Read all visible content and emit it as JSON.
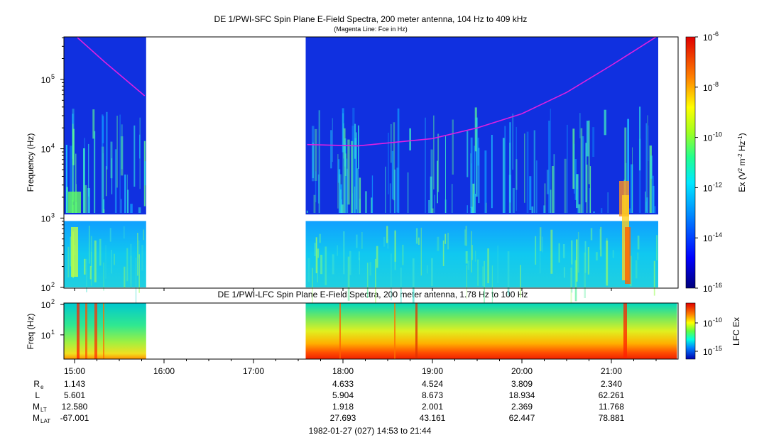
{
  "colors": {
    "panel_base": "#1030e0",
    "band_blue": "#1840ff",
    "trace": "#e020e0",
    "gap_fill": "#ffffff"
  },
  "chart_data": [
    {
      "type": "heatmap",
      "title": "DE 1/PWI-SFC  Spin Plane E-Field Spectra, 200 meter antenna, 104 Hz to 409 kHz",
      "subtitle": "(Magenta Line: Fce in Hz)",
      "xlabel": "",
      "ylabel": "Frequency (Hz)",
      "yscale": "log",
      "ylim": [
        100,
        409000
      ],
      "yticks": [
        {
          "value": 100,
          "label": "10",
          "sup": "2"
        },
        {
          "value": 1000,
          "label": "10",
          "sup": "3"
        },
        {
          "value": 10000,
          "label": "10",
          "sup": "4"
        },
        {
          "value": 100000,
          "label": "10",
          "sup": "5"
        }
      ],
      "xlim": [
        "14:53",
        "21:44"
      ],
      "data_gaps": [
        [
          "15:48",
          "17:35"
        ]
      ],
      "magenta_trace_fce_hz": [
        {
          "t": "15:02",
          "f": 400000
        },
        {
          "t": "15:20",
          "f": 180000
        },
        {
          "t": "15:47",
          "f": 58000
        },
        {
          "t": "17:36",
          "f": 11500
        },
        {
          "t": "18:10",
          "f": 11000
        },
        {
          "t": "19:00",
          "f": 14000
        },
        {
          "t": "19:30",
          "f": 20000
        },
        {
          "t": "20:00",
          "f": 32000
        },
        {
          "t": "20:30",
          "f": 65000
        },
        {
          "t": "21:00",
          "f": 160000
        },
        {
          "t": "21:30",
          "f": 409000
        }
      ],
      "colorbar": {
        "label_parts": [
          "Ex (V",
          "2",
          " m",
          "-2",
          " Hz",
          "-1",
          ")"
        ],
        "scale": "log",
        "range": [
          1e-16,
          1e-06
        ],
        "ticks": [
          {
            "value": 1e-06,
            "label": "10",
            "sup": "-6"
          },
          {
            "value": 1e-08,
            "label": "10",
            "sup": "-8"
          },
          {
            "value": 1e-10,
            "label": "10",
            "sup": "-10"
          },
          {
            "value": 1e-12,
            "label": "10",
            "sup": "-12"
          },
          {
            "value": 1e-14,
            "label": "10",
            "sup": "-14"
          },
          {
            "value": 1e-16,
            "label": "10",
            "sup": "-16"
          }
        ]
      }
    },
    {
      "type": "heatmap",
      "title": "DE 1/PWI-LFC  Spin Plane E-Field Spectra, 200 meter antenna, 1.78 Hz to 100 Hz",
      "ylabel": "Freq (Hz)",
      "yscale": "log",
      "ylim": [
        1.78,
        100
      ],
      "yticks": [
        {
          "value": 100,
          "label": "10",
          "sup": "2"
        },
        {
          "value": 10,
          "label": "10",
          "sup": "1"
        }
      ],
      "xlim": [
        "14:53",
        "21:44"
      ],
      "data_gaps": [
        [
          "15:48",
          "17:35"
        ]
      ],
      "colorbar": {
        "label": "LFC Ex",
        "scale": "log",
        "ticks": [
          {
            "value": 1e-10,
            "label": "10",
            "sup": "-10"
          },
          {
            "value": 1e-15,
            "label": "10",
            "sup": "-15"
          }
        ]
      }
    }
  ],
  "time_axis": {
    "ticks": [
      "15:00",
      "16:00",
      "17:00",
      "18:00",
      "19:00",
      "20:00",
      "21:00"
    ]
  },
  "ephemeris": {
    "rows": [
      {
        "label": "R",
        "sub": "e",
        "values": [
          "1.143",
          "",
          "",
          "4.633",
          "4.524",
          "3.809",
          "2.340"
        ]
      },
      {
        "label": "L",
        "sub": "",
        "values": [
          "5.601",
          "",
          "",
          "5.904",
          "8.673",
          "18.934",
          "62.261"
        ]
      },
      {
        "label": "M",
        "sub": "LT",
        "values": [
          "12.580",
          "",
          "",
          "1.918",
          "2.001",
          "2.369",
          "11.768"
        ]
      },
      {
        "label": "M",
        "sub": "LAT",
        "values": [
          "-67.001",
          "",
          "",
          "27.693",
          "43.161",
          "62.447",
          "78.881"
        ]
      }
    ]
  },
  "footer": "1982-01-27 (027) 14:53 to 21:44"
}
